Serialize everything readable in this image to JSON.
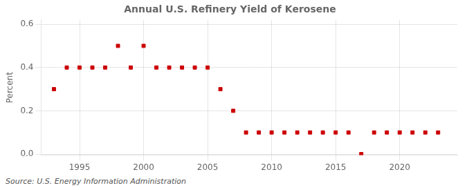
{
  "chart_data": {
    "type": "scatter",
    "title": "Annual U.S. Refinery Yield of Kerosene",
    "ylabel": "Percent",
    "source": "Source: U.S. Energy Information Administration",
    "color": "#cc0000",
    "marker": "square",
    "x": [
      1993,
      1994,
      1995,
      1996,
      1997,
      1998,
      1999,
      2000,
      2001,
      2002,
      2003,
      2004,
      2005,
      2006,
      2007,
      2008,
      2009,
      2010,
      2011,
      2012,
      2013,
      2014,
      2015,
      2016,
      2017,
      2018,
      2019,
      2020,
      2021,
      2022,
      2023
    ],
    "values": [
      0.3,
      0.4,
      0.4,
      0.4,
      0.4,
      0.5,
      0.4,
      0.5,
      0.4,
      0.4,
      0.4,
      0.4,
      0.4,
      0.3,
      0.2,
      0.1,
      0.1,
      0.1,
      0.1,
      0.1,
      0.1,
      0.1,
      0.1,
      0.1,
      0.0,
      0.1,
      0.1,
      0.1,
      0.1,
      0.1,
      0.1
    ],
    "xlim": [
      1992.0,
      2024.5
    ],
    "xticks": [
      1995,
      2000,
      2005,
      2010,
      2015,
      2020
    ],
    "ylim": [
      -0.005,
      0.62
    ],
    "yticks": [
      {
        "value": 0.0,
        "label": "0.0"
      },
      0.2,
      0.4,
      0.6
    ],
    "grid": true
  }
}
